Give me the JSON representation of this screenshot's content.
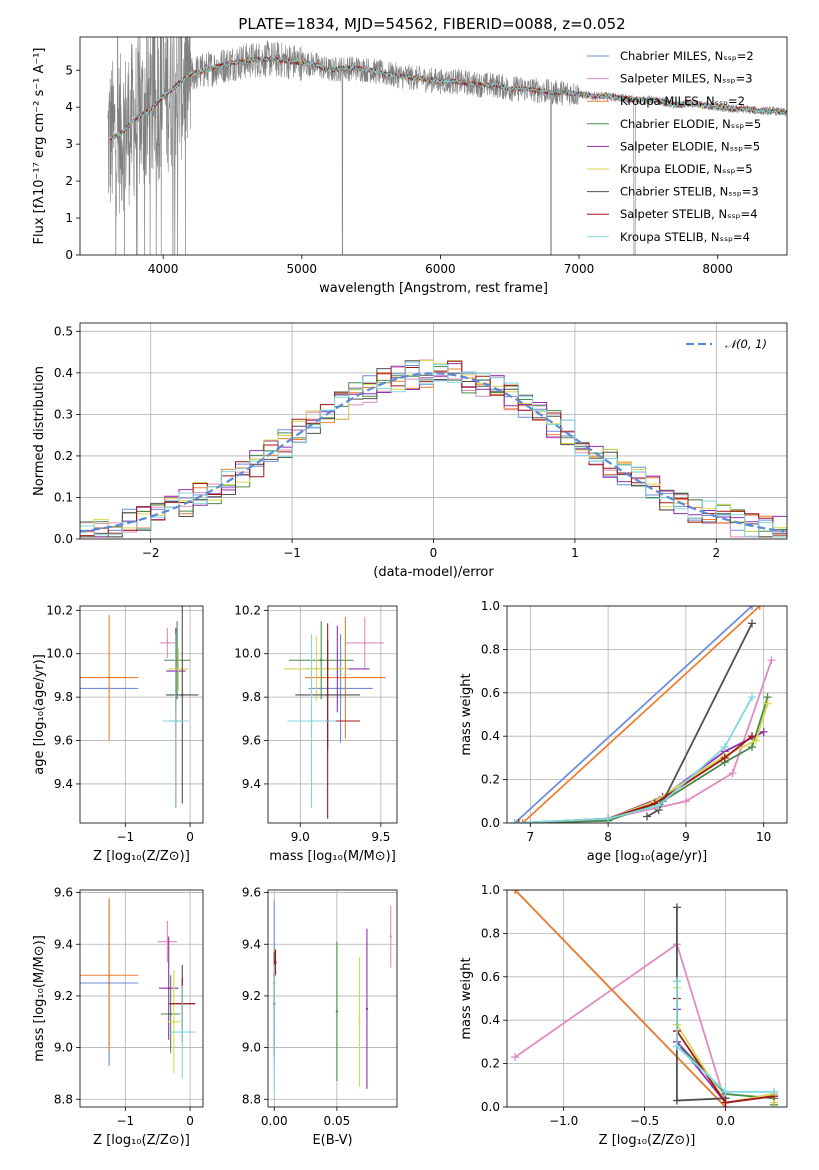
{
  "figure": {
    "title": "PLATE=1834, MJD=54562, FIBERID=0088, z=0.052"
  },
  "colors": {
    "data": "#808080",
    "models": [
      "#6F8FD8",
      "#E08CC0",
      "#F08030",
      "#4A8C4A",
      "#9030B0",
      "#D8D850",
      "#505050",
      "#A01818",
      "#80D8E0"
    ],
    "gauss": "#5B8BD8"
  },
  "chart_data": [
    {
      "id": "spectrum",
      "type": "line",
      "xlabel": "wavelength [Angstrom, rest frame]",
      "ylabel": "Flux [fλ10⁻¹⁷ erg cm⁻² s⁻¹ A⁻¹]",
      "xlim": [
        3400,
        8500
      ],
      "ylim": [
        0,
        5.9
      ],
      "xticks": [
        4000,
        5000,
        6000,
        7000,
        8000
      ],
      "yticks": [
        0,
        1,
        2,
        3,
        4,
        5
      ],
      "legend_position": "top-right",
      "grid": false,
      "continuum": {
        "x": [
          3600,
          3700,
          3800,
          3900,
          4000,
          4100,
          4200,
          4300,
          4400,
          4500,
          4600,
          4700,
          4800,
          4900,
          5000,
          5100,
          5200,
          5300,
          5400,
          5500,
          5600,
          5700,
          5800,
          5900,
          6000,
          6100,
          6200,
          6300,
          6400,
          6500,
          6600,
          6700,
          6800,
          6900,
          7000,
          7100,
          7200,
          7300,
          7400,
          7500,
          7600,
          7700,
          7800,
          7900,
          8000,
          8100,
          8200,
          8300,
          8400,
          8500
        ],
        "y": [
          3.1,
          3.3,
          3.7,
          3.9,
          4.3,
          4.6,
          4.9,
          5.0,
          5.1,
          5.2,
          5.25,
          5.3,
          5.3,
          5.25,
          5.2,
          5.15,
          5.0,
          5.05,
          5.05,
          5.0,
          4.9,
          4.85,
          4.8,
          4.75,
          4.7,
          4.7,
          4.65,
          4.6,
          4.6,
          4.5,
          4.5,
          4.45,
          4.4,
          4.4,
          4.35,
          4.3,
          4.3,
          4.25,
          4.2,
          4.2,
          4.15,
          4.05,
          4.1,
          4.05,
          4.0,
          3.95,
          3.95,
          3.9,
          3.9,
          3.85
        ]
      },
      "series": [
        {
          "name": "Chabrier MILES, Nₛₛₚ=2"
        },
        {
          "name": "Salpeter MILES, Nₛₛₚ=3"
        },
        {
          "name": "Kroupa MILES, Nₛₛₚ=2"
        },
        {
          "name": "Chabrier ELODIE, Nₛₛₚ=5"
        },
        {
          "name": "Salpeter ELODIE, Nₛₛₚ=5"
        },
        {
          "name": "Kroupa ELODIE, Nₛₛₚ=5"
        },
        {
          "name": "Chabrier STELIB, Nₛₛₚ=3"
        },
        {
          "name": "Salpeter STELIB, Nₛₛₚ=4"
        },
        {
          "name": "Kroupa STELIB, Nₛₛₚ=4"
        }
      ]
    },
    {
      "id": "residuals",
      "type": "line",
      "xlabel": "(data-model)/error",
      "ylabel": "Normed distribution",
      "xlim": [
        -2.5,
        2.5
      ],
      "ylim": [
        0,
        0.52
      ],
      "xticks": [
        -2,
        -1,
        0,
        1,
        2
      ],
      "yticks": [
        0.0,
        0.1,
        0.2,
        0.3,
        0.4,
        0.5
      ],
      "grid": true,
      "legend": "𝒩(0, 1)",
      "legend_position": "top-right",
      "bin_width": 0.1
    },
    {
      "id": "age-z",
      "type": "scatter",
      "xlabel": "Z [log₁₀(Z/Z⊙)]",
      "ylabel": "age  [log₁₀(age/yr)]",
      "xlim": [
        -1.7,
        0.2
      ],
      "ylim": [
        9.22,
        10.22
      ],
      "xticks": [
        -1,
        0
      ],
      "yticks": [
        9.4,
        9.6,
        9.8,
        10.0,
        10.2
      ],
      "grid": true,
      "points": [
        {
          "x": -1.25,
          "y": 9.84,
          "xerr": 0.45,
          "yerr": 0.0
        },
        {
          "x": -0.35,
          "y": 10.05,
          "xerr": 0.12,
          "yerr": 0.07
        },
        {
          "x": -1.25,
          "y": 9.89,
          "xerr": 0.45,
          "yerr": 0.29
        },
        {
          "x": -0.2,
          "y": 9.97,
          "xerr": 0.2,
          "yerr": 0.18
        },
        {
          "x": -0.22,
          "y": 9.92,
          "xerr": 0.15,
          "yerr": 0.2
        },
        {
          "x": -0.18,
          "y": 9.93,
          "xerr": 0.15,
          "yerr": 0.1
        },
        {
          "x": -0.12,
          "y": 9.81,
          "xerr": 0.25,
          "yerr": 0.5
        },
        {
          "x": -0.22,
          "y": 9.69,
          "xerr": 0.1,
          "yerr": 0.4
        },
        {
          "x": -0.22,
          "y": 9.69,
          "xerr": 0.2,
          "yerr": 0.4
        }
      ]
    },
    {
      "id": "age-mass",
      "type": "scatter",
      "xlabel": "mass [log₁₀(M/M⊙)]",
      "ylabel": "",
      "xlim": [
        8.8,
        9.6
      ],
      "ylim": [
        9.22,
        10.22
      ],
      "xticks": [
        9.0,
        9.5
      ],
      "yticks": [
        9.4,
        9.6,
        9.8,
        10.0,
        10.2
      ],
      "grid": true,
      "points": [
        {
          "x": 9.25,
          "y": 9.84,
          "xerr": 0.2,
          "yerr": 0.25
        },
        {
          "x": 9.4,
          "y": 10.05,
          "xerr": 0.12,
          "yerr": 0.12
        },
        {
          "x": 9.28,
          "y": 9.89,
          "xerr": 0.25,
          "yerr": 0.28
        },
        {
          "x": 9.13,
          "y": 9.97,
          "xerr": 0.2,
          "yerr": 0.18
        },
        {
          "x": 9.23,
          "y": 9.93,
          "xerr": 0.2,
          "yerr": 0.2
        },
        {
          "x": 9.1,
          "y": 9.93,
          "xerr": 0.2,
          "yerr": 0.15
        },
        {
          "x": 9.17,
          "y": 9.81,
          "xerr": 0.2,
          "yerr": 0.25
        },
        {
          "x": 9.17,
          "y": 9.69,
          "xerr": 0.2,
          "yerr": 0.45
        },
        {
          "x": 9.07,
          "y": 9.69,
          "xerr": 0.15,
          "yerr": 0.4
        }
      ]
    },
    {
      "id": "mass-weight-age",
      "type": "line",
      "xlabel": "age  [log₁₀(age/yr)]",
      "ylabel": "mass weight",
      "xlim": [
        6.7,
        10.3
      ],
      "ylim": [
        0,
        1
      ],
      "xticks": [
        7,
        8,
        9,
        10
      ],
      "yticks": [
        0.0,
        0.2,
        0.4,
        0.6,
        0.8,
        1.0
      ],
      "grid": true,
      "series": [
        {
          "x": [
            6.8,
            9.85
          ],
          "y": [
            0.0,
            1.0
          ]
        },
        {
          "x": [
            6.85,
            8.0,
            9.0,
            9.6,
            10.1
          ],
          "y": [
            0.0,
            0.02,
            0.1,
            0.23,
            0.75
          ]
        },
        {
          "x": [
            6.9,
            9.95
          ],
          "y": [
            0.0,
            1.0
          ]
        },
        {
          "x": [
            6.8,
            8.0,
            8.7,
            9.5,
            9.85,
            10.05
          ],
          "y": [
            0.0,
            0.01,
            0.1,
            0.28,
            0.35,
            0.58
          ]
        },
        {
          "x": [
            6.85,
            8.0,
            8.7,
            9.5,
            10.0
          ],
          "y": [
            0.0,
            0.02,
            0.12,
            0.33,
            0.42
          ]
        },
        {
          "x": [
            6.85,
            8.0,
            8.6,
            9.5,
            9.9,
            10.05
          ],
          "y": [
            0.0,
            0.02,
            0.1,
            0.31,
            0.38,
            0.55
          ]
        },
        {
          "x": [
            8.5,
            8.65,
            9.85
          ],
          "y": [
            0.03,
            0.06,
            0.92
          ]
        },
        {
          "x": [
            6.85,
            8.0,
            8.6,
            9.5,
            9.85
          ],
          "y": [
            0.0,
            0.02,
            0.09,
            0.3,
            0.4
          ]
        },
        {
          "x": [
            6.8,
            8.0,
            8.65,
            9.5,
            9.85
          ],
          "y": [
            0.0,
            0.02,
            0.08,
            0.35,
            0.58
          ]
        }
      ]
    },
    {
      "id": "mass-z",
      "type": "scatter",
      "xlabel": "Z [log₁₀(Z/Z⊙)]",
      "ylabel": "mass [log₁₀(M/M⊙)]",
      "xlim": [
        -1.7,
        0.2
      ],
      "ylim": [
        8.77,
        9.61
      ],
      "xticks": [
        -1,
        0
      ],
      "yticks": [
        8.8,
        9.0,
        9.2,
        9.4,
        9.6
      ],
      "grid": true,
      "points": [
        {
          "x": -1.25,
          "y": 9.25,
          "xerr": 0.45,
          "yerr": 0.32
        },
        {
          "x": -0.35,
          "y": 9.41,
          "xerr": 0.15,
          "yerr": 0.08
        },
        {
          "x": -1.25,
          "y": 9.28,
          "xerr": 0.45,
          "yerr": 0.3
        },
        {
          "x": -0.3,
          "y": 9.13,
          "xerr": 0.15,
          "yerr": 0.15
        },
        {
          "x": -0.33,
          "y": 9.23,
          "xerr": 0.15,
          "yerr": 0.2
        },
        {
          "x": -0.25,
          "y": 9.1,
          "xerr": 0.1,
          "yerr": 0.2
        },
        {
          "x": -0.12,
          "y": 9.17,
          "xerr": 0.2,
          "yerr": 0.15
        },
        {
          "x": -0.12,
          "y": 9.17,
          "xerr": 0.2,
          "yerr": 0.1
        },
        {
          "x": -0.12,
          "y": 9.06,
          "xerr": 0.2,
          "yerr": 0.18
        }
      ]
    },
    {
      "id": "mass-ebv",
      "type": "scatter",
      "xlabel": "E(B-V)",
      "ylabel": "",
      "xlim": [
        -0.005,
        0.098
      ],
      "ylim": [
        8.77,
        9.61
      ],
      "xticks": [
        0.0,
        0.05
      ],
      "yticks": [
        8.8,
        9.0,
        9.2,
        9.4,
        9.6
      ],
      "grid": true,
      "points": [
        {
          "x": 0.0,
          "y": 9.25,
          "xerr": 0.0,
          "yerr": 0.32
        },
        {
          "x": 0.093,
          "y": 9.43,
          "xerr": 0.0,
          "yerr": 0.12
        },
        {
          "x": 0.0,
          "y": 9.28,
          "xerr": 0.0,
          "yerr": 0.1
        },
        {
          "x": 0.05,
          "y": 9.14,
          "xerr": 0.0,
          "yerr": 0.27
        },
        {
          "x": 0.074,
          "y": 9.15,
          "xerr": 0.0,
          "yerr": 0.31
        },
        {
          "x": 0.068,
          "y": 9.1,
          "xerr": 0.0,
          "yerr": 0.25
        },
        {
          "x": 0.0,
          "y": 9.17,
          "xerr": 0.0,
          "yerr": 0.2
        },
        {
          "x": 0.001,
          "y": 9.33,
          "xerr": 0.0,
          "yerr": 0.05
        },
        {
          "x": 0.0,
          "y": 9.07,
          "xerr": 0.0,
          "yerr": 0.25
        }
      ]
    },
    {
      "id": "mass-weight-z",
      "type": "line",
      "xlabel": "Z [log₁₀(Z/Z⊙)]",
      "ylabel": "mass weight",
      "xlim": [
        -1.35,
        0.38
      ],
      "ylim": [
        0,
        1
      ],
      "xticks": [
        -1.0,
        -0.5,
        0.0
      ],
      "yticks": [
        0.0,
        0.2,
        0.4,
        0.6,
        0.8,
        1.0
      ],
      "grid": true,
      "series": [
        {
          "x": [
            -1.3,
            0.0
          ],
          "y": [
            1.0,
            0.0
          ]
        },
        {
          "x": [
            -1.3,
            -0.3,
            0.0,
            0.3
          ],
          "y": [
            0.23,
            0.75,
            0.02,
            0.05
          ]
        },
        {
          "x": [
            -1.3,
            0.0
          ],
          "y": [
            1.0,
            0.0
          ]
        },
        {
          "x": [
            -0.3,
            -0.3,
            0.0,
            0.3,
            0.3
          ],
          "y": [
            0.58,
            0.3,
            0.06,
            0.04,
            0.01
          ]
        },
        {
          "x": [
            -0.3,
            -0.3,
            0.0,
            0.3
          ],
          "y": [
            0.45,
            0.3,
            0.02,
            0.06
          ]
        },
        {
          "x": [
            -0.3,
            -0.3,
            0.0,
            0.3,
            0.3
          ],
          "y": [
            0.55,
            0.38,
            0.02,
            0.06,
            0.02
          ]
        },
        {
          "x": [
            -0.3,
            -0.3,
            0.0
          ],
          "y": [
            0.92,
            0.03,
            0.04
          ]
        },
        {
          "x": [
            -0.3,
            -0.3,
            0.0,
            0.3
          ],
          "y": [
            0.5,
            0.35,
            0.02,
            0.05
          ]
        },
        {
          "x": [
            -0.3,
            -0.3,
            0.0,
            0.3
          ],
          "y": [
            0.58,
            0.28,
            0.07,
            0.07
          ]
        }
      ]
    }
  ]
}
